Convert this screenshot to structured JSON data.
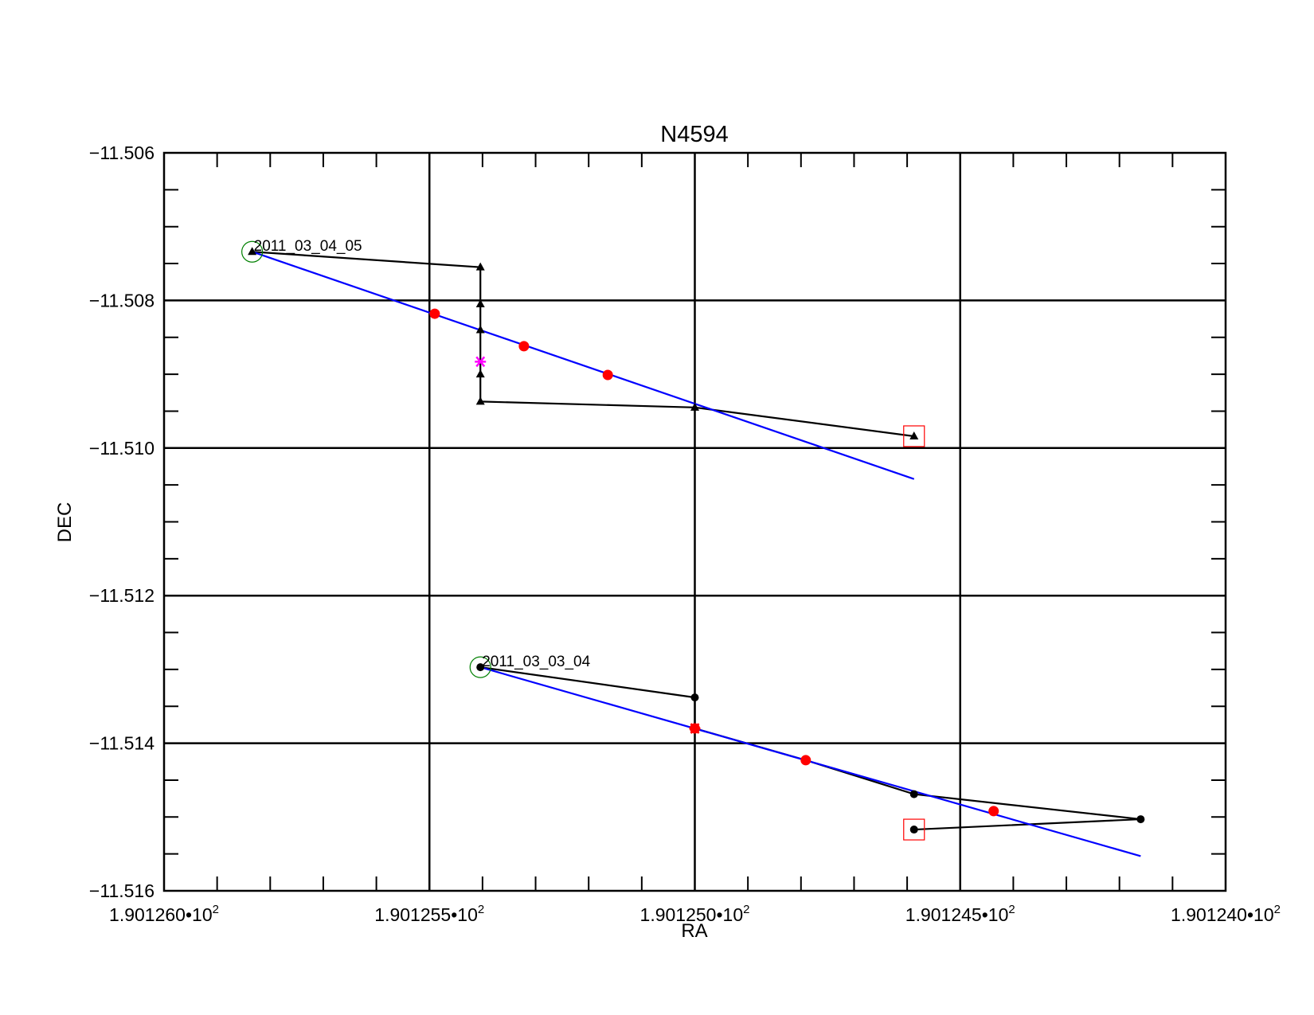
{
  "chart_data": {
    "type": "scatter",
    "title": "N4594",
    "xlabel": "RA",
    "ylabel": "DEC",
    "xlim": [
      190.126,
      190.124
    ],
    "ylim": [
      -11.516,
      -11.506
    ],
    "x_ticks": [
      {
        "value": 190.126,
        "mantissa": "1.901260",
        "sep": "•10",
        "exp": "2"
      },
      {
        "value": 190.1255,
        "mantissa": "1.901255",
        "sep": "•10",
        "exp": "2"
      },
      {
        "value": 190.125,
        "mantissa": "1.901250",
        "sep": "•10",
        "exp": "2"
      },
      {
        "value": 190.1245,
        "mantissa": "1.901245",
        "sep": "•10",
        "exp": "2"
      },
      {
        "value": 190.124,
        "mantissa": "1.901240",
        "sep": "•10",
        "exp": "2"
      }
    ],
    "y_ticks": [
      {
        "value": -11.506,
        "label": "−11.506"
      },
      {
        "value": -11.508,
        "label": "−11.508"
      },
      {
        "value": -11.51,
        "label": "−11.510"
      },
      {
        "value": -11.512,
        "label": "−11.512"
      },
      {
        "value": -11.514,
        "label": "−11.514"
      },
      {
        "value": -11.516,
        "label": "−11.516"
      }
    ],
    "grid": true,
    "colors": {
      "track": "#000000",
      "fit": "#0000ff",
      "fit_point": "#ff0000",
      "start": "#008000",
      "end": "#ff0000",
      "center": "#ff00ff"
    },
    "groups": [
      {
        "label": "2011_03_04_05",
        "marker": "triangle",
        "track": [
          [
            190.125834,
            -11.50734
          ],
          [
            190.125404,
            -11.50755
          ],
          [
            190.125404,
            -11.50805
          ],
          [
            190.125404,
            -11.5084
          ],
          [
            190.125404,
            -11.509
          ],
          [
            190.125404,
            -11.50937
          ],
          [
            190.125,
            -11.50945
          ],
          [
            190.124587,
            -11.50984
          ]
        ],
        "fit_line": [
          [
            190.125834,
            -11.50734
          ],
          [
            190.124587,
            -11.51042
          ]
        ],
        "fit_points": [
          [
            190.12549,
            -11.50818
          ],
          [
            190.125322,
            -11.50862
          ],
          [
            190.125164,
            -11.50901
          ]
        ],
        "center_mark": [
          190.125404,
          -11.50883
        ],
        "start": [
          190.125834,
          -11.50734
        ],
        "end": [
          190.124587,
          -11.50984
        ]
      },
      {
        "label": "2011_03_03_04",
        "marker": "circle",
        "track": [
          [
            190.125404,
            -11.51297
          ],
          [
            190.125,
            -11.51338
          ],
          [
            190.125,
            -11.5138
          ],
          [
            190.124791,
            -11.51423
          ],
          [
            190.124587,
            -11.51469
          ],
          [
            190.12416,
            -11.51503
          ],
          [
            190.124587,
            -11.51517
          ]
        ],
        "fit_line": [
          [
            190.125404,
            -11.51297
          ],
          [
            190.12416,
            -11.51553
          ]
        ],
        "fit_points": [
          [
            190.125,
            -11.5138
          ],
          [
            190.124791,
            -11.51423
          ],
          [
            190.124437,
            -11.51492
          ]
        ],
        "center_mark": [
          190.125,
          -11.5138
        ],
        "start": [
          190.125404,
          -11.51297
        ],
        "end": [
          190.124587,
          -11.51517
        ]
      }
    ]
  }
}
